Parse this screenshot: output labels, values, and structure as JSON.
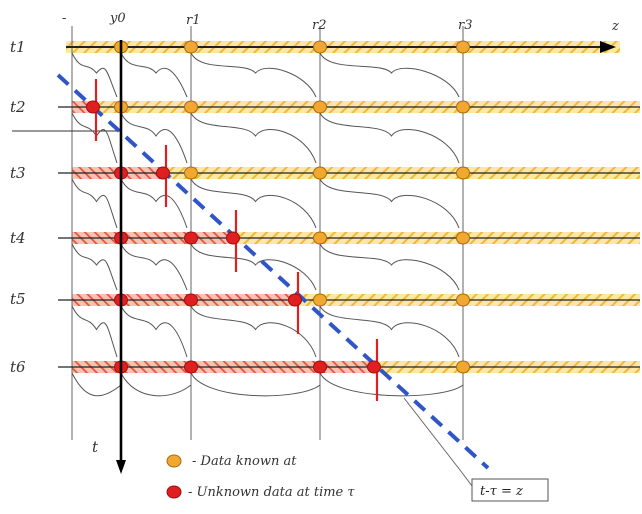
{
  "diagram": {
    "row_labels": [
      "t1",
      "t2",
      "t3",
      "t4",
      "t5",
      "t6"
    ],
    "column_labels": [
      "y0",
      "r1",
      "r2",
      "r3"
    ],
    "axis_top_label": "z",
    "axis_top_left_label": "-",
    "axis_down_label": "t",
    "legend": {
      "known": "- Data known at",
      "unknown": "- Unknown data at time τ"
    },
    "boundary_label": "t-τ = z",
    "colors": {
      "known_fill": "#f0a830",
      "unknown_fill": "#e02020",
      "hatch_yellow": "#f5c542",
      "hatch_red": "#e8604a",
      "boundary_line": "#2f55c8",
      "cut_mark": "#e02020"
    }
  }
}
